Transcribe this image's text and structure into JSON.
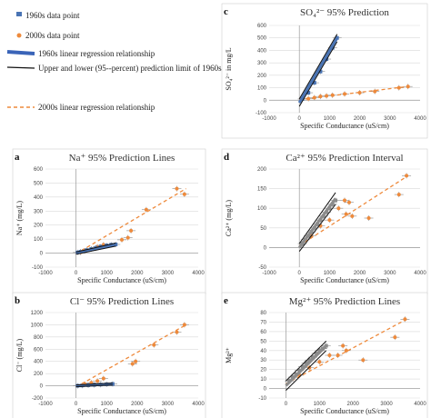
{
  "legend": {
    "items": [
      {
        "label": "1960s data point",
        "kind": "point",
        "color": "#4a74b4"
      },
      {
        "label": "2000s data point",
        "kind": "point",
        "color": "#ee8a3c"
      },
      {
        "label": "1960s linear regression relationship",
        "kind": "thick-line",
        "color": "#3a64b8"
      },
      {
        "label": "Upper and lower (95--percent) prediction limit of 1960s data",
        "kind": "thin-line",
        "color": "#111111"
      },
      {
        "label": "2000s linear regression relationship",
        "kind": "dash-line",
        "color": "#ee8a3c"
      }
    ]
  },
  "colors": {
    "blue": "#4a74b4",
    "orange": "#ee8a3c",
    "gray": "#8c8c8c",
    "grid": "#d9d9d9",
    "black": "#111111"
  },
  "chart_data": [
    {
      "id": "a",
      "letter": "a",
      "type": "scatter",
      "title": "Na⁺ 95% Prediction Lines",
      "xlabel": "Specific Conductance (uS/cm)",
      "ylabel": "Na⁺ (mg/L)",
      "xlim": [
        -1000,
        4000
      ],
      "ylim": [
        -100,
        600
      ],
      "xticks": [
        -1000,
        0,
        1000,
        2000,
        3000,
        4000
      ],
      "yticks": [
        -100,
        0,
        100,
        200,
        300,
        400,
        500,
        600
      ],
      "grid": true,
      "series": [
        {
          "kind": "points",
          "color": "orange",
          "points": [
            [
              3300,
              460
            ],
            [
              3550,
              420
            ],
            [
              2300,
              310
            ],
            [
              1800,
              160
            ],
            [
              1700,
              110
            ],
            [
              1500,
              95
            ],
            [
              900,
              60
            ],
            [
              700,
              45
            ],
            [
              500,
              30
            ],
            [
              300,
              15
            ],
            [
              150,
              5
            ]
          ]
        },
        {
          "kind": "points",
          "color": "blue",
          "points": [
            [
              50,
              5
            ],
            [
              150,
              10
            ],
            [
              250,
              15
            ],
            [
              350,
              22
            ],
            [
              500,
              30
            ],
            [
              650,
              38
            ],
            [
              800,
              45
            ],
            [
              1000,
              55
            ],
            [
              1150,
              60
            ],
            [
              1300,
              62
            ]
          ]
        },
        {
          "kind": "line",
          "style": "dash",
          "color": "orange",
          "points": [
            [
              0,
              -5
            ],
            [
              3600,
              460
            ]
          ]
        },
        {
          "kind": "line",
          "style": "thick",
          "color": "blue",
          "points": [
            [
              0,
              0
            ],
            [
              1300,
              62
            ]
          ]
        },
        {
          "kind": "line",
          "style": "thin",
          "color": "black",
          "points": [
            [
              0,
              8
            ],
            [
              1300,
              72
            ]
          ]
        },
        {
          "kind": "line",
          "style": "thin",
          "color": "black",
          "points": [
            [
              0,
              -8
            ],
            [
              1300,
              50
            ]
          ]
        }
      ]
    },
    {
      "id": "b",
      "letter": "b",
      "type": "scatter",
      "title": "Cl⁻ 95% Prediction Lines",
      "xlabel": "Specific Conductance (uS/cm)",
      "ylabel": "Cl⁻ (mg/L)",
      "xlim": [
        -1000,
        4000
      ],
      "ylim": [
        -200,
        1200
      ],
      "xticks": [
        -1000,
        0,
        1000,
        2000,
        3000,
        4000
      ],
      "yticks": [
        -200,
        0,
        200,
        400,
        600,
        800,
        1000,
        1200
      ],
      "grid": true,
      "series": [
        {
          "kind": "points",
          "color": "orange",
          "points": [
            [
              3550,
              1000
            ],
            [
              3300,
              880
            ],
            [
              2550,
              670
            ],
            [
              1950,
              400
            ],
            [
              1850,
              360
            ],
            [
              900,
              120
            ],
            [
              700,
              80
            ],
            [
              500,
              50
            ],
            [
              300,
              25
            ]
          ]
        },
        {
          "kind": "points",
          "color": "blue",
          "points": [
            [
              50,
              0
            ],
            [
              200,
              5
            ],
            [
              400,
              10
            ],
            [
              600,
              15
            ],
            [
              800,
              20
            ],
            [
              1000,
              25
            ],
            [
              1200,
              30
            ]
          ]
        },
        {
          "kind": "line",
          "style": "dash",
          "color": "orange",
          "points": [
            [
              0,
              -20
            ],
            [
              3600,
              1000
            ]
          ]
        },
        {
          "kind": "line",
          "style": "thick",
          "color": "blue",
          "points": [
            [
              0,
              0
            ],
            [
              1200,
              30
            ]
          ]
        },
        {
          "kind": "line",
          "style": "thin",
          "color": "black",
          "points": [
            [
              0,
              15
            ],
            [
              1200,
              45
            ]
          ]
        },
        {
          "kind": "line",
          "style": "thin",
          "color": "black",
          "points": [
            [
              0,
              -15
            ],
            [
              1200,
              15
            ]
          ]
        }
      ]
    },
    {
      "id": "c",
      "letter": "c",
      "type": "scatter",
      "title": "SO₄²⁻ 95% Prediction",
      "xlabel": "Specific Conductance (uS/cm)",
      "ylabel": "SO₄²⁻ in mg/L",
      "xlim": [
        -1000,
        4000
      ],
      "ylim": [
        -100,
        600
      ],
      "xticks": [
        -1000,
        0,
        1000,
        2000,
        3000,
        4000
      ],
      "yticks": [
        -100,
        0,
        100,
        200,
        300,
        400,
        500,
        600
      ],
      "grid": true,
      "series": [
        {
          "kind": "points",
          "color": "orange",
          "points": [
            [
              3600,
              110
            ],
            [
              3300,
              100
            ],
            [
              2500,
              70
            ],
            [
              2000,
              60
            ],
            [
              1500,
              50
            ],
            [
              1100,
              40
            ],
            [
              900,
              35
            ],
            [
              700,
              30
            ],
            [
              500,
              20
            ],
            [
              300,
              12
            ]
          ]
        },
        {
          "kind": "points",
          "color": "blue",
          "points": [
            [
              100,
              10
            ],
            [
              300,
              60
            ],
            [
              500,
              140
            ],
            [
              700,
              230
            ],
            [
              900,
              330
            ],
            [
              1100,
              420
            ],
            [
              1250,
              500
            ]
          ]
        },
        {
          "kind": "line",
          "style": "dash",
          "color": "orange",
          "points": [
            [
              0,
              5
            ],
            [
              3600,
              110
            ]
          ]
        },
        {
          "kind": "line",
          "style": "thick",
          "color": "blue",
          "points": [
            [
              0,
              -20
            ],
            [
              1250,
              500
            ]
          ]
        },
        {
          "kind": "line",
          "style": "thin",
          "color": "black",
          "points": [
            [
              0,
              10
            ],
            [
              1250,
              530
            ]
          ]
        },
        {
          "kind": "line",
          "style": "thin",
          "color": "black",
          "points": [
            [
              0,
              -50
            ],
            [
              1250,
              470
            ]
          ]
        }
      ]
    },
    {
      "id": "d",
      "letter": "d",
      "type": "scatter",
      "title": "Ca²⁺ 95% Prediction Interval",
      "xlabel": "Specific Conductance (uS/cm)",
      "ylabel": "Ca²⁺ (mg/L)",
      "xlim": [
        -1000,
        4000
      ],
      "ylim": [
        -50,
        200
      ],
      "xticks": [
        -1000,
        0,
        1000,
        2000,
        3000,
        4000
      ],
      "yticks": [
        -50,
        0,
        50,
        100,
        150,
        200
      ],
      "grid": true,
      "series": [
        {
          "kind": "points",
          "color": "orange",
          "points": [
            [
              3550,
              183
            ],
            [
              3300,
              135
            ],
            [
              2300,
              75
            ],
            [
              1750,
              80
            ],
            [
              1650,
              115
            ],
            [
              1550,
              85
            ],
            [
              1500,
              120
            ],
            [
              1300,
              100
            ],
            [
              1000,
              70
            ],
            [
              700,
              55
            ],
            [
              400,
              30
            ]
          ]
        },
        {
          "kind": "points",
          "color": "gray",
          "points": [
            [
              100,
              10
            ],
            [
              200,
              20
            ],
            [
              300,
              30
            ],
            [
              400,
              40
            ],
            [
              500,
              50
            ],
            [
              600,
              60
            ],
            [
              700,
              70
            ],
            [
              800,
              80
            ],
            [
              900,
              90
            ],
            [
              1000,
              100
            ],
            [
              1100,
              110
            ],
            [
              1200,
              120
            ]
          ]
        },
        {
          "kind": "line",
          "style": "dash",
          "color": "orange",
          "points": [
            [
              0,
              5
            ],
            [
              3600,
              183
            ]
          ]
        },
        {
          "kind": "line",
          "style": "thick",
          "color": "gray",
          "points": [
            [
              0,
              0
            ],
            [
              1200,
              125
            ]
          ]
        },
        {
          "kind": "line",
          "style": "thin",
          "color": "black",
          "points": [
            [
              0,
              10
            ],
            [
              1200,
              140
            ]
          ]
        },
        {
          "kind": "line",
          "style": "thin",
          "color": "black",
          "points": [
            [
              0,
              -10
            ],
            [
              1200,
              110
            ]
          ]
        }
      ]
    },
    {
      "id": "e",
      "letter": "e",
      "type": "scatter",
      "title": "Mg²⁺ 95% Prediction Lines",
      "xlabel": "Specific Conductance (uS/cm)",
      "ylabel": "Mg²⁺",
      "xlim": [
        -500,
        4000
      ],
      "ylim": [
        -10,
        80
      ],
      "xticks": [
        0,
        1000,
        2000,
        3000,
        4000
      ],
      "yticks": [
        -10,
        0,
        10,
        20,
        30,
        40,
        50,
        60,
        70,
        80
      ],
      "grid": true,
      "series": [
        {
          "kind": "points",
          "color": "orange",
          "points": [
            [
              3550,
              73
            ],
            [
              3250,
              54
            ],
            [
              2300,
              30
            ],
            [
              1800,
              40
            ],
            [
              1700,
              45
            ],
            [
              1550,
              35
            ],
            [
              1300,
              35
            ],
            [
              1000,
              28
            ],
            [
              700,
              22
            ],
            [
              400,
              14
            ]
          ]
        },
        {
          "kind": "points",
          "color": "gray",
          "points": [
            [
              100,
              8
            ],
            [
              200,
              12
            ],
            [
              300,
              15
            ],
            [
              400,
              19
            ],
            [
              500,
              23
            ],
            [
              600,
              27
            ],
            [
              700,
              30
            ],
            [
              800,
              33
            ],
            [
              900,
              37
            ],
            [
              1000,
              40
            ],
            [
              1100,
              42
            ],
            [
              1200,
              45
            ]
          ]
        },
        {
          "kind": "line",
          "style": "dash",
          "color": "orange",
          "points": [
            [
              0,
              5
            ],
            [
              3600,
              73
            ]
          ]
        },
        {
          "kind": "line",
          "style": "thick",
          "color": "gray",
          "points": [
            [
              0,
              3
            ],
            [
              1200,
              45
            ]
          ]
        },
        {
          "kind": "line",
          "style": "thin",
          "color": "black",
          "points": [
            [
              0,
              8
            ],
            [
              1200,
              50
            ]
          ]
        },
        {
          "kind": "line",
          "style": "thin",
          "color": "black",
          "points": [
            [
              0,
              -2
            ],
            [
              1200,
              40
            ]
          ]
        }
      ]
    }
  ]
}
